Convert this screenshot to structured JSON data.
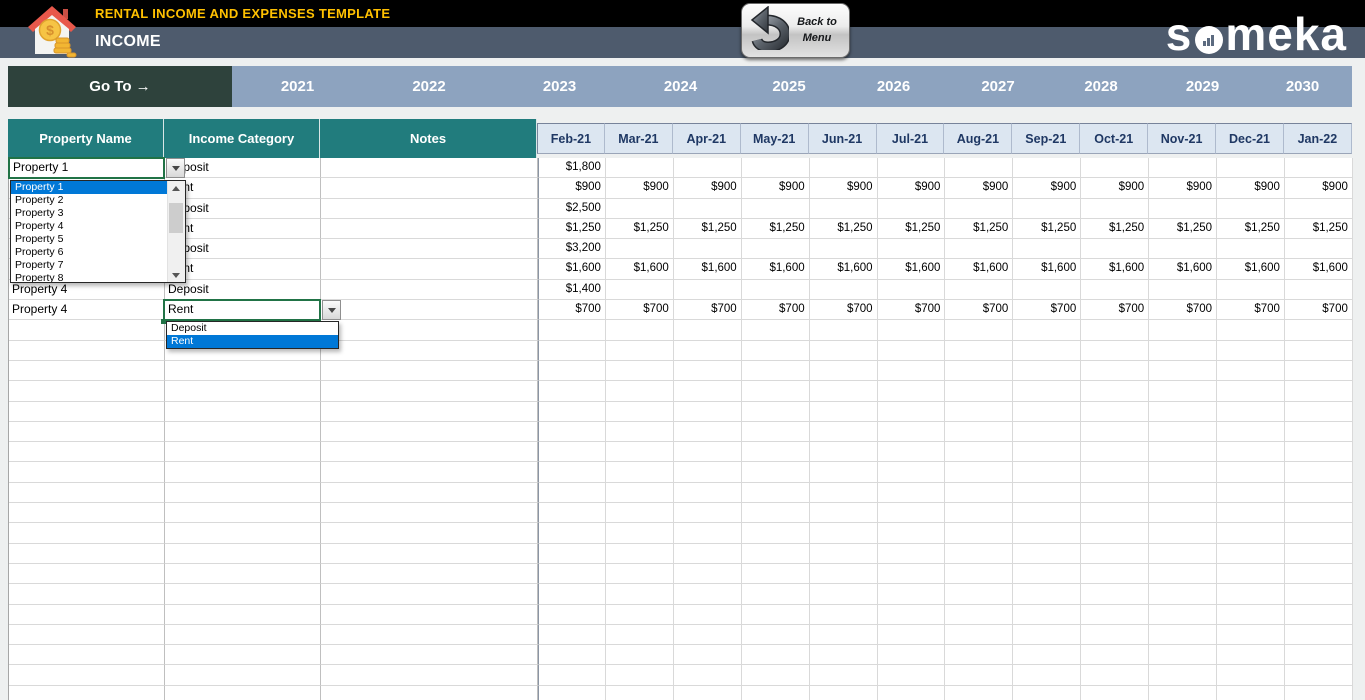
{
  "header": {
    "app_title": "RENTAL INCOME AND EXPENSES TEMPLATE",
    "sheet_title": "INCOME",
    "back_button": {
      "line1": "Back to",
      "line2": "Menu"
    },
    "logo_pre": "s",
    "logo_post": "meka"
  },
  "nav": {
    "goto_label": "Go To →",
    "years": [
      "2021",
      "2022",
      "2023",
      "2024",
      "2025",
      "2026",
      "2027",
      "2028",
      "2029",
      "2030"
    ]
  },
  "table": {
    "column_headers": {
      "property": "Property Name",
      "category": "Income Category",
      "notes": "Notes"
    },
    "months": [
      "Feb-21",
      "Mar-21",
      "Apr-21",
      "May-21",
      "Jun-21",
      "Jul-21",
      "Aug-21",
      "Sep-21",
      "Oct-21",
      "Nov-21",
      "Dec-21",
      "Jan-22"
    ],
    "rows": [
      {
        "property": "",
        "category": "Deposit",
        "notes": "",
        "values": [
          "$1,800",
          "",
          "",
          "",
          "",
          "",
          "",
          "",
          "",
          "",
          "",
          ""
        ]
      },
      {
        "property": "",
        "category": "Rent",
        "notes": "",
        "values": [
          "$900",
          "$900",
          "$900",
          "$900",
          "$900",
          "$900",
          "$900",
          "$900",
          "$900",
          "$900",
          "$900",
          "$900"
        ]
      },
      {
        "property": "",
        "category": "Deposit",
        "notes": "",
        "values": [
          "$2,500",
          "",
          "",
          "",
          "",
          "",
          "",
          "",
          "",
          "",
          "",
          ""
        ]
      },
      {
        "property": "",
        "category": "Rent",
        "notes": "",
        "values": [
          "$1,250",
          "$1,250",
          "$1,250",
          "$1,250",
          "$1,250",
          "$1,250",
          "$1,250",
          "$1,250",
          "$1,250",
          "$1,250",
          "$1,250",
          "$1,250"
        ]
      },
      {
        "property": "",
        "category": "Deposit",
        "notes": "",
        "values": [
          "$3,200",
          "",
          "",
          "",
          "",
          "",
          "",
          "",
          "",
          "",
          "",
          ""
        ]
      },
      {
        "property": "",
        "category": "Rent",
        "notes": "",
        "values": [
          "$1,600",
          "$1,600",
          "$1,600",
          "$1,600",
          "$1,600",
          "$1,600",
          "$1,600",
          "$1,600",
          "$1,600",
          "$1,600",
          "$1,600",
          "$1,600"
        ]
      },
      {
        "property": "Property 4",
        "category": "Deposit",
        "notes": "",
        "values": [
          "$1,400",
          "",
          "",
          "",
          "",
          "",
          "",
          "",
          "",
          "",
          "",
          ""
        ]
      },
      {
        "property": "Property 4",
        "category": "Rent",
        "notes": "",
        "values": [
          "$700",
          "$700",
          "$700",
          "$700",
          "$700",
          "$700",
          "$700",
          "$700",
          "$700",
          "$700",
          "$700",
          "$700"
        ]
      }
    ]
  },
  "property_dropdown": {
    "value": "Property 1",
    "selected": "Property 1",
    "options": [
      "Property 1",
      "Property 2",
      "Property 3",
      "Property 4",
      "Property 5",
      "Property 6",
      "Property 7",
      "Property 8"
    ]
  },
  "category_dropdown": {
    "value": "Rent",
    "selected": "Rent",
    "options": [
      "Deposit",
      "Rent"
    ]
  },
  "colors": {
    "top_bar": "#000000",
    "sub_bar": "#4E5B6D",
    "title_yellow": "#FFC000",
    "header_teal": "#217C7D",
    "month_header_bg": "#DCE6F1",
    "month_header_text": "#1F3864",
    "year_bar": "#8DA3BF",
    "goto_bg": "#2E423C",
    "selection_blue": "#0078D7",
    "active_cell_border": "#217346"
  }
}
